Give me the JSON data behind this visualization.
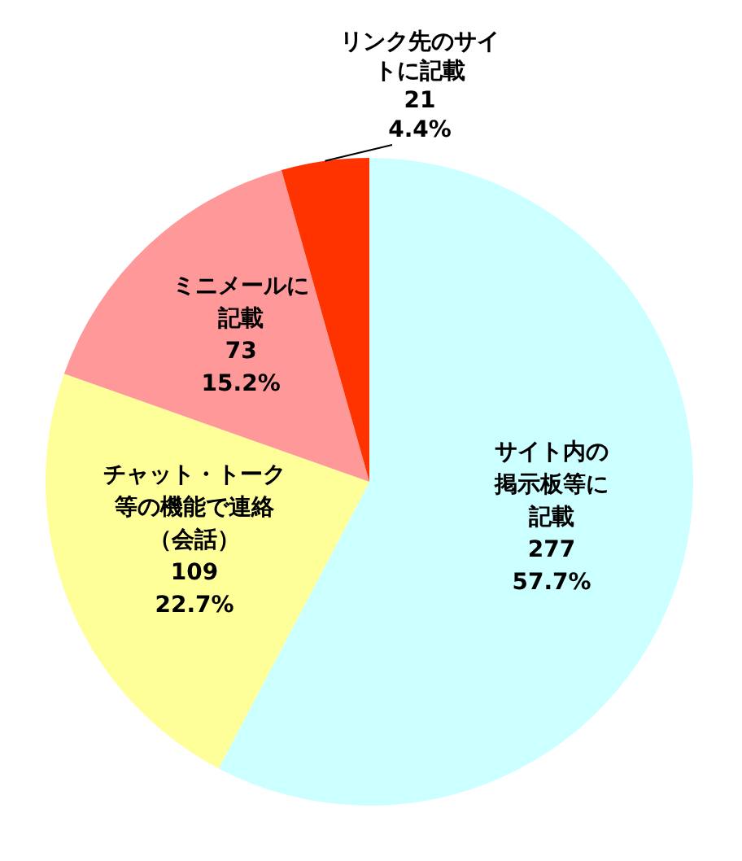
{
  "chart_data": {
    "type": "pie",
    "categories": [
      "サイト内の掲示板等に記載",
      "チャット・トーク等の機能で連絡（会話）",
      "ミニメールに記載",
      "リンク先のサイトに記載"
    ],
    "values": [
      277,
      109,
      73,
      21
    ],
    "colors": [
      "#ccffff",
      "#ffff99",
      "#ff9999",
      "#ff3300"
    ],
    "value_labels": [
      "277\n57.7%",
      "109\n22.7%",
      "73\n15.2%",
      "21\n4.4%"
    ]
  }
}
